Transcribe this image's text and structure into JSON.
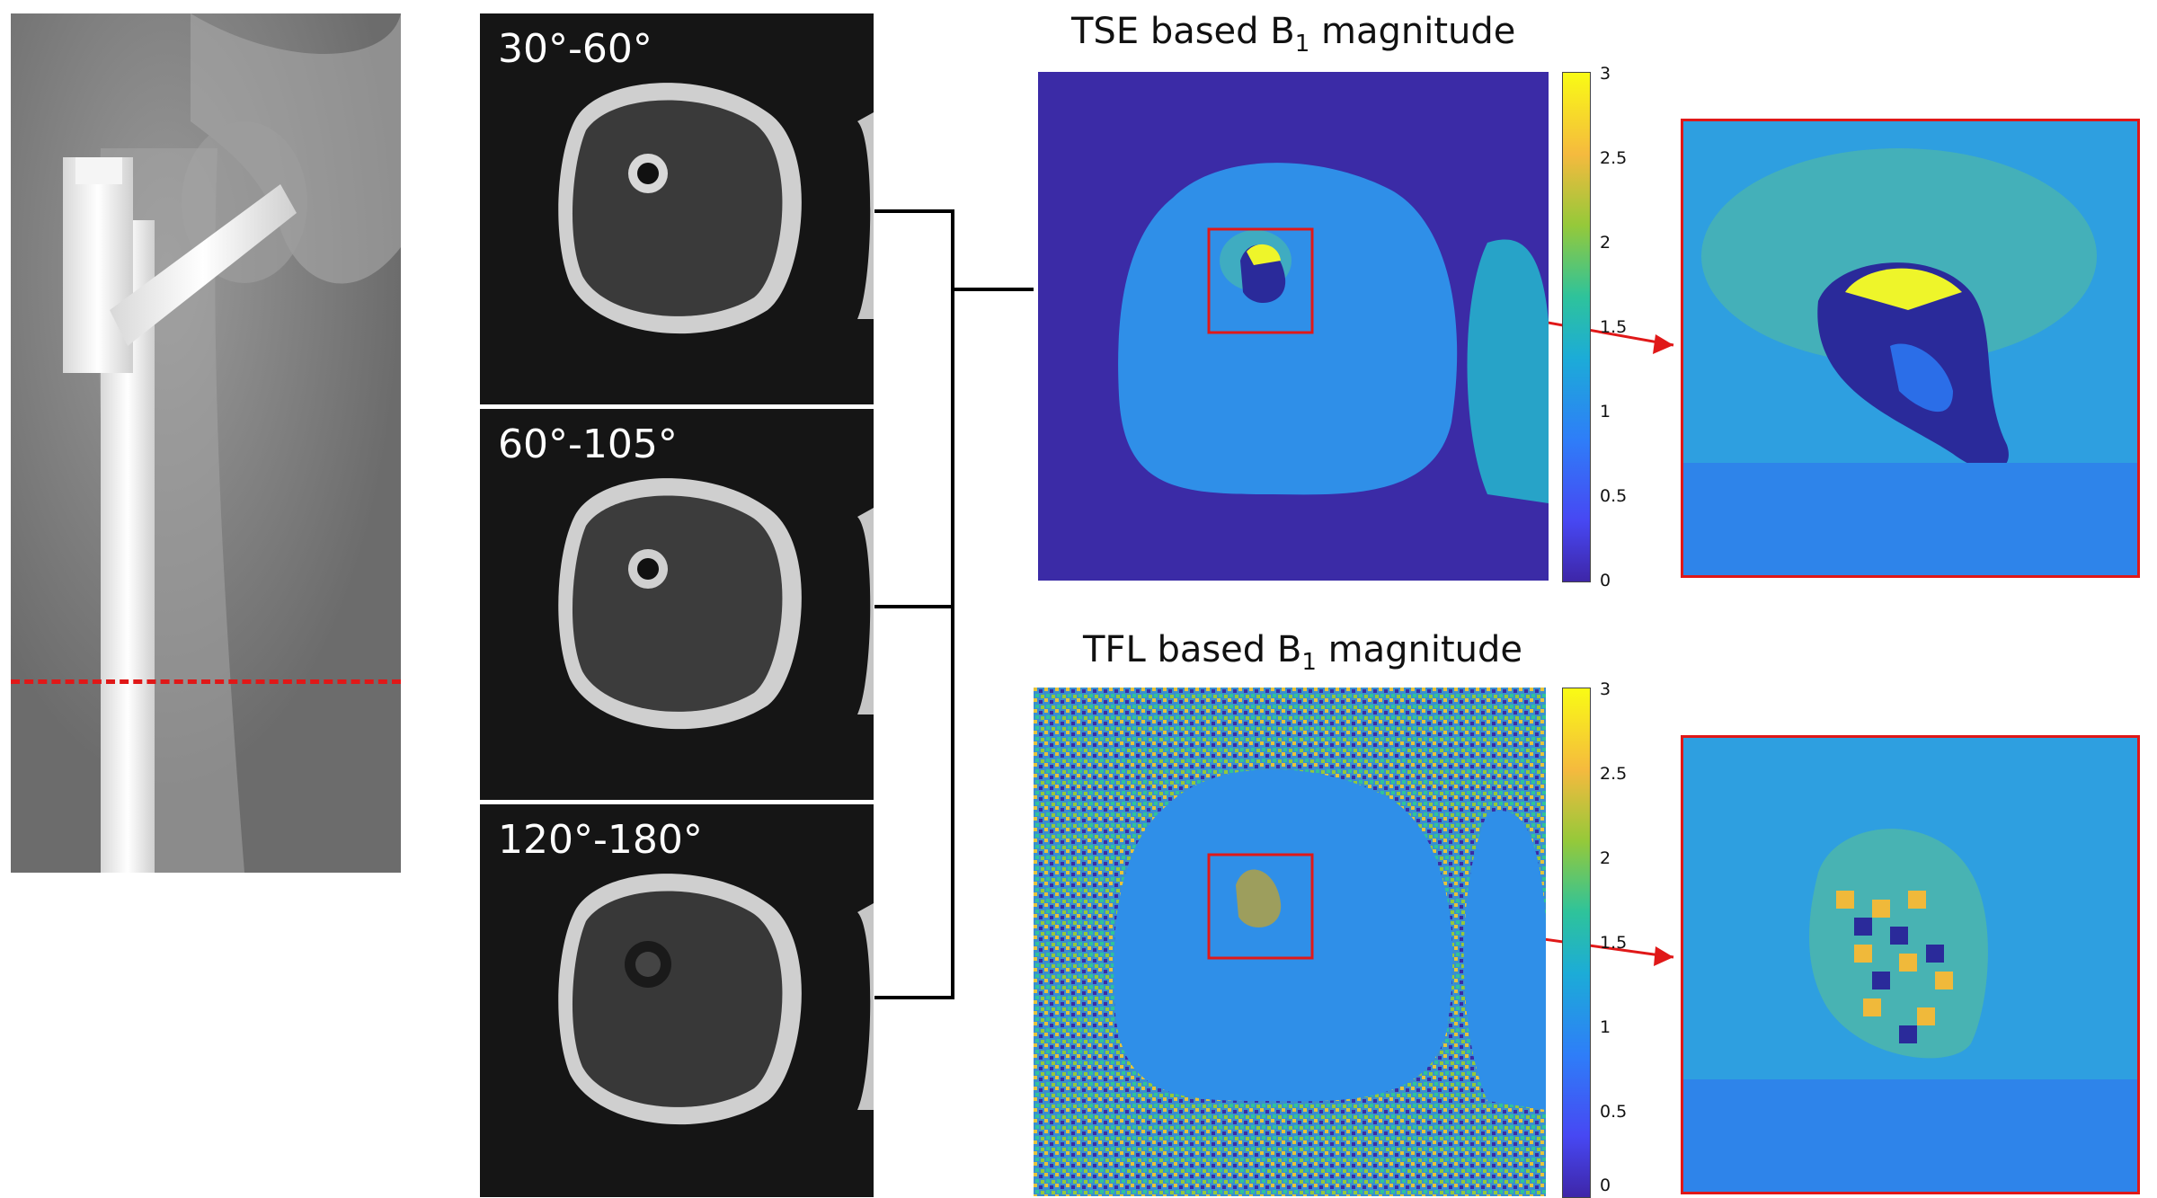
{
  "mri_panels": [
    {
      "label": "30°-60°"
    },
    {
      "label": "60°-105°"
    },
    {
      "label": "120°-180°"
    }
  ],
  "maps": {
    "tse": {
      "title_prefix": "TSE based B",
      "title_sub": "1",
      "title_suffix": " magnitude"
    },
    "tfl": {
      "title_prefix": "TFL based B",
      "title_sub": "1",
      "title_suffix": " magnitude"
    }
  },
  "colorbar_ticks": [
    "3",
    "2.5",
    "2",
    "1.5",
    "1",
    "0.5",
    "0"
  ],
  "colors": {
    "highlight_red": "#e01818",
    "map_background": "#3b2ba6",
    "tissue_blue": "#2f8fe8"
  }
}
